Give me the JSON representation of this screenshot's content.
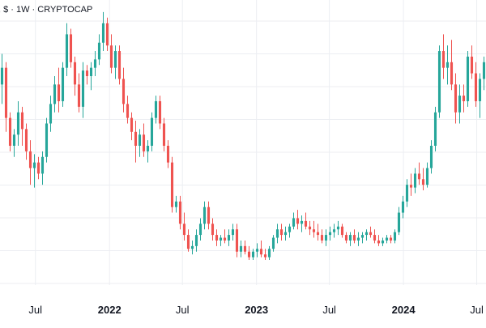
{
  "chart_data": {
    "type": "candlestick",
    "title": ", $ · 1W · CRYPTOCAP",
    "xlabel": "",
    "ylabel": "",
    "grid": true,
    "legend": "none",
    "colors": {
      "up": "#26a69a",
      "down": "#ef5350",
      "grid": "#eceef2",
      "text": "#131722"
    },
    "x_tick_labels": [
      {
        "label": "Jul",
        "date": "2021-07-01",
        "bold": false
      },
      {
        "label": "2022",
        "date": "2022-01-01",
        "bold": true
      },
      {
        "label": "Jul",
        "date": "2022-07-01",
        "bold": false
      },
      {
        "label": "2023",
        "date": "2023-01-01",
        "bold": true
      },
      {
        "label": "Jul",
        "date": "2023-07-01",
        "bold": false
      },
      {
        "label": "2024",
        "date": "2024-01-01",
        "bold": true
      },
      {
        "label": "Jul",
        "date": "2024-07-01",
        "bold": false
      }
    ],
    "xlim": [
      "2021-04-04",
      "2024-07-24"
    ],
    "ylim": [
      0,
      100
    ],
    "ohlc_note": "relative price level 0-100 (no price scale visible)",
    "series": [
      {
        "candles": [
          [
            72,
            83,
            65,
            78
          ],
          [
            78,
            80,
            55,
            60
          ],
          [
            60,
            62,
            48,
            50
          ],
          [
            50,
            56,
            46,
            54
          ],
          [
            54,
            66,
            50,
            62
          ],
          [
            62,
            64,
            50,
            56
          ],
          [
            56,
            58,
            45,
            48
          ],
          [
            48,
            52,
            36,
            42
          ],
          [
            42,
            47,
            35,
            44
          ],
          [
            44,
            46,
            38,
            40
          ],
          [
            40,
            48,
            36,
            46
          ],
          [
            46,
            60,
            44,
            58
          ],
          [
            58,
            68,
            55,
            65
          ],
          [
            65,
            75,
            62,
            72
          ],
          [
            72,
            78,
            62,
            66
          ],
          [
            66,
            80,
            64,
            78
          ],
          [
            78,
            94,
            75,
            90
          ],
          [
            90,
            92,
            78,
            80
          ],
          [
            80,
            82,
            68,
            72
          ],
          [
            72,
            76,
            62,
            64
          ],
          [
            64,
            80,
            60,
            77
          ],
          [
            77,
            79,
            72,
            75
          ],
          [
            75,
            80,
            70,
            78
          ],
          [
            78,
            84,
            75,
            81
          ],
          [
            81,
            90,
            79,
            87
          ],
          [
            87,
            98,
            84,
            94
          ],
          [
            94,
            96,
            84,
            86
          ],
          [
            86,
            90,
            76,
            78
          ],
          [
            78,
            86,
            74,
            84
          ],
          [
            84,
            86,
            72,
            74
          ],
          [
            74,
            78,
            62,
            65
          ],
          [
            65,
            68,
            58,
            60
          ],
          [
            60,
            62,
            52,
            55
          ],
          [
            55,
            59,
            44,
            50
          ],
          [
            50,
            56,
            46,
            54
          ],
          [
            54,
            58,
            46,
            48
          ],
          [
            48,
            52,
            44,
            50
          ],
          [
            50,
            62,
            48,
            60
          ],
          [
            60,
            68,
            58,
            66
          ],
          [
            66,
            68,
            56,
            58
          ],
          [
            58,
            60,
            48,
            50
          ],
          [
            50,
            52,
            42,
            44
          ],
          [
            44,
            46,
            26,
            28
          ],
          [
            28,
            32,
            26,
            30
          ],
          [
            30,
            32,
            20,
            22
          ],
          [
            22,
            26,
            16,
            18
          ],
          [
            18,
            20,
            12,
            13
          ],
          [
            13,
            16,
            11,
            14
          ],
          [
            14,
            20,
            12,
            18
          ],
          [
            18,
            24,
            16,
            22
          ],
          [
            22,
            30,
            20,
            28
          ],
          [
            28,
            30,
            20,
            22
          ],
          [
            22,
            24,
            16,
            18
          ],
          [
            18,
            20,
            14,
            16
          ],
          [
            16,
            18,
            14,
            17
          ],
          [
            17,
            20,
            15,
            16
          ],
          [
            16,
            20,
            14,
            18
          ],
          [
            18,
            22,
            16,
            20
          ],
          [
            20,
            22,
            10,
            12
          ],
          [
            12,
            16,
            10,
            14
          ],
          [
            14,
            16,
            11,
            12
          ],
          [
            12,
            14,
            9,
            10
          ],
          [
            10,
            13,
            9,
            12
          ],
          [
            12,
            15,
            10,
            13
          ],
          [
            13,
            16,
            10,
            11
          ],
          [
            11,
            13,
            9,
            10
          ],
          [
            10,
            14,
            9,
            13
          ],
          [
            13,
            18,
            12,
            17
          ],
          [
            17,
            22,
            15,
            20
          ],
          [
            20,
            22,
            16,
            18
          ],
          [
            18,
            21,
            16,
            19
          ],
          [
            19,
            22,
            17,
            21
          ],
          [
            21,
            26,
            20,
            24
          ],
          [
            24,
            27,
            20,
            22
          ],
          [
            22,
            25,
            19,
            23
          ],
          [
            23,
            26,
            20,
            21
          ],
          [
            21,
            23,
            18,
            20
          ],
          [
            20,
            23,
            17,
            19
          ],
          [
            19,
            22,
            16,
            18
          ],
          [
            18,
            20,
            15,
            16
          ],
          [
            16,
            20,
            14,
            18
          ],
          [
            18,
            21,
            16,
            19
          ],
          [
            19,
            22,
            17,
            20
          ],
          [
            20,
            23,
            18,
            21
          ],
          [
            21,
            22,
            17,
            18
          ],
          [
            18,
            19,
            15,
            16
          ],
          [
            16,
            19,
            14,
            18
          ],
          [
            18,
            20,
            15,
            16
          ],
          [
            16,
            19,
            14,
            17
          ],
          [
            17,
            19,
            15,
            18
          ],
          [
            18,
            20,
            16,
            19
          ],
          [
            19,
            21,
            17,
            18
          ],
          [
            18,
            20,
            15,
            16
          ],
          [
            16,
            18,
            14,
            15
          ],
          [
            15,
            17,
            14,
            16
          ],
          [
            16,
            18,
            15,
            17
          ],
          [
            17,
            18,
            15,
            16
          ],
          [
            16,
            20,
            15,
            19
          ],
          [
            19,
            28,
            18,
            26
          ],
          [
            26,
            32,
            24,
            30
          ],
          [
            30,
            38,
            28,
            36
          ],
          [
            36,
            40,
            32,
            35
          ],
          [
            35,
            42,
            33,
            40
          ],
          [
            40,
            44,
            36,
            38
          ],
          [
            38,
            42,
            34,
            36
          ],
          [
            36,
            44,
            35,
            42
          ],
          [
            42,
            52,
            40,
            50
          ],
          [
            50,
            64,
            48,
            62
          ],
          [
            62,
            86,
            60,
            84
          ],
          [
            84,
            90,
            74,
            78
          ],
          [
            78,
            86,
            72,
            80
          ],
          [
            80,
            88,
            70,
            72
          ],
          [
            72,
            76,
            58,
            62
          ],
          [
            62,
            72,
            58,
            68
          ],
          [
            68,
            72,
            62,
            66
          ],
          [
            66,
            84,
            64,
            82
          ],
          [
            82,
            86,
            74,
            76
          ],
          [
            76,
            80,
            64,
            66
          ],
          [
            66,
            76,
            60,
            74
          ],
          [
            74,
            82,
            70,
            80
          ]
        ]
      }
    ]
  }
}
